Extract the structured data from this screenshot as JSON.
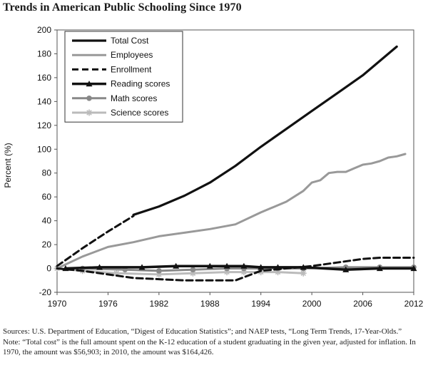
{
  "chart_data": {
    "type": "line",
    "title": "Trends in American Public Schooling Since 1970",
    "xlabel": "",
    "ylabel": "Percent (%)",
    "xlim": [
      1970,
      2012
    ],
    "ylim": [
      -20,
      200
    ],
    "xticks": [
      1970,
      1976,
      1982,
      1988,
      1994,
      2000,
      2006,
      2012
    ],
    "yticks": [
      -20,
      0,
      20,
      40,
      60,
      80,
      100,
      120,
      140,
      160,
      180,
      200
    ],
    "grid": false,
    "legend": "top-left",
    "series": [
      {
        "name": "Total Cost",
        "style": "solid-thick",
        "color": "#111111",
        "x": [
          1979,
          1982,
          1985,
          1988,
          1991,
          1994,
          1997,
          2000,
          2003,
          2006,
          2008,
          2010
        ],
        "y": [
          45,
          52,
          61,
          72,
          86,
          102,
          117,
          132,
          147,
          162,
          174,
          186
        ]
      },
      {
        "name": "Employees",
        "style": "solid",
        "color": "#999999",
        "x": [
          1970,
          1973,
          1976,
          1979,
          1982,
          1985,
          1988,
          1991,
          1994,
          1997,
          1999,
          2000,
          2001,
          2002,
          2003,
          2004,
          2005,
          2006,
          2007,
          2008,
          2009,
          2010,
          2011
        ],
        "y": [
          0,
          10,
          18,
          22,
          27,
          30,
          33,
          37,
          47,
          56,
          65,
          72,
          74,
          80,
          81,
          81,
          84,
          87,
          88,
          90,
          93,
          94,
          96
        ]
      },
      {
        "name": "Enrollment",
        "style": "dashed",
        "color": "#111111",
        "upper": {
          "x": [
            1970,
            1973,
            1976,
            1979
          ],
          "y": [
            2,
            17,
            31,
            44
          ]
        },
        "x": [
          1970,
          1973,
          1976,
          1979,
          1982,
          1985,
          1988,
          1991,
          1994,
          1997,
          2000,
          2003,
          2006,
          2008,
          2010,
          2012
        ],
        "y": [
          0,
          -2,
          -5,
          -8,
          -9,
          -10,
          -10,
          -10,
          -2,
          0,
          2,
          5,
          8,
          9,
          9,
          9
        ]
      },
      {
        "name": "Reading scores",
        "style": "solid-thick-triangle",
        "color": "#111111",
        "x": [
          1971,
          1975,
          1980,
          1984,
          1988,
          1990,
          1992,
          1994,
          1996,
          1999,
          2004,
          2008,
          2012
        ],
        "y": [
          0,
          1,
          1,
          2,
          2,
          2,
          2,
          1,
          1,
          1,
          -1,
          0,
          0
        ]
      },
      {
        "name": "Math scores",
        "style": "solid-circle",
        "color": "#888888",
        "x": [
          1973,
          1978,
          1982,
          1986,
          1990,
          1992,
          1994,
          1996,
          1999,
          2004,
          2008,
          2012
        ],
        "y": [
          0,
          -1,
          -2,
          -1,
          0,
          0,
          0,
          0,
          0,
          1,
          1,
          1
        ]
      },
      {
        "name": "Science scores",
        "style": "solid-star",
        "color": "#bbbbbb",
        "x": [
          1970,
          1973,
          1977,
          1982,
          1986,
          1990,
          1992,
          1994,
          1996,
          1999
        ],
        "y": [
          0,
          -2,
          -4,
          -5,
          -4,
          -3,
          -3,
          -3,
          -3,
          -4
        ]
      }
    ]
  },
  "notes": {
    "sources": "Sources: U.S. Department of Education, “Digest of Education Statistics”; and NAEP tests, “Long Term Trends, 17-Year-Olds.”",
    "note": "Note: “Total cost” is the full amount spent on the K-12 education of a student graduating in the given year, adjusted for inflation. In 1970, the amount was $56,903; in 2010, the amount was $164,426."
  }
}
